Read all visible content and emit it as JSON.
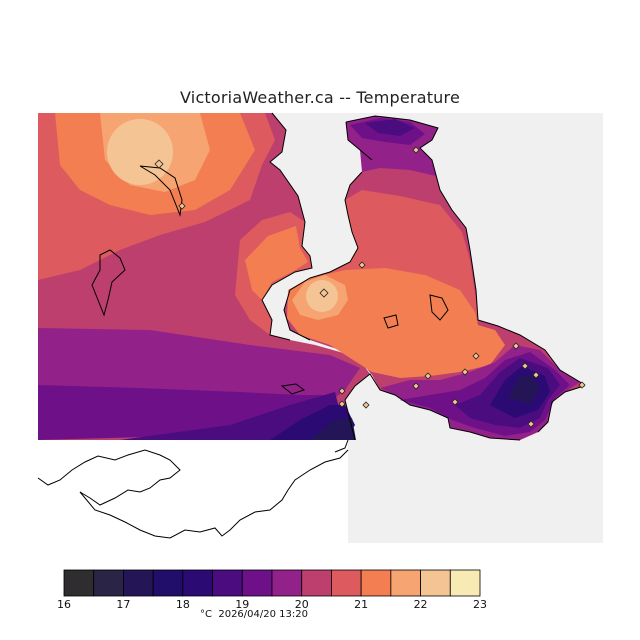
{
  "map": {
    "title": "VictoriaWeather.ca -- Temperature",
    "background_colors": {
      "water": "#f0f0f0",
      "outside_domain": "#ffffff",
      "coast": "#000000"
    }
  },
  "legend": {
    "unit": "°C",
    "timestamp": "2026/04/20 13:20",
    "ticks": [
      "16",
      "17",
      "18",
      "19",
      "20",
      "21",
      "22",
      "23"
    ],
    "bins": [
      {
        "from": 16.0,
        "to": 16.5,
        "color": "#2f2d2f"
      },
      {
        "from": 16.5,
        "to": 17.0,
        "color": "#2a2446"
      },
      {
        "from": 17.0,
        "to": 17.5,
        "color": "#241656"
      },
      {
        "from": 17.5,
        "to": 18.0,
        "color": "#210e6a"
      },
      {
        "from": 18.0,
        "to": 18.5,
        "color": "#2b0b73"
      },
      {
        "from": 18.5,
        "to": 19.0,
        "color": "#4b0c80"
      },
      {
        "from": 19.0,
        "to": 19.5,
        "color": "#6e1189"
      },
      {
        "from": 19.5,
        "to": 20.0,
        "color": "#93218a"
      },
      {
        "from": 20.0,
        "to": 20.5,
        "color": "#bd3f6e"
      },
      {
        "from": 20.5,
        "to": 21.0,
        "color": "#dd5a5e"
      },
      {
        "from": 21.0,
        "to": 21.5,
        "color": "#f27e52"
      },
      {
        "from": 21.5,
        "to": 22.0,
        "color": "#f5a472"
      },
      {
        "from": 22.0,
        "to": 22.5,
        "color": "#f5c495"
      },
      {
        "from": 22.5,
        "to": 23.0,
        "color": "#f7eab3"
      }
    ]
  }
}
